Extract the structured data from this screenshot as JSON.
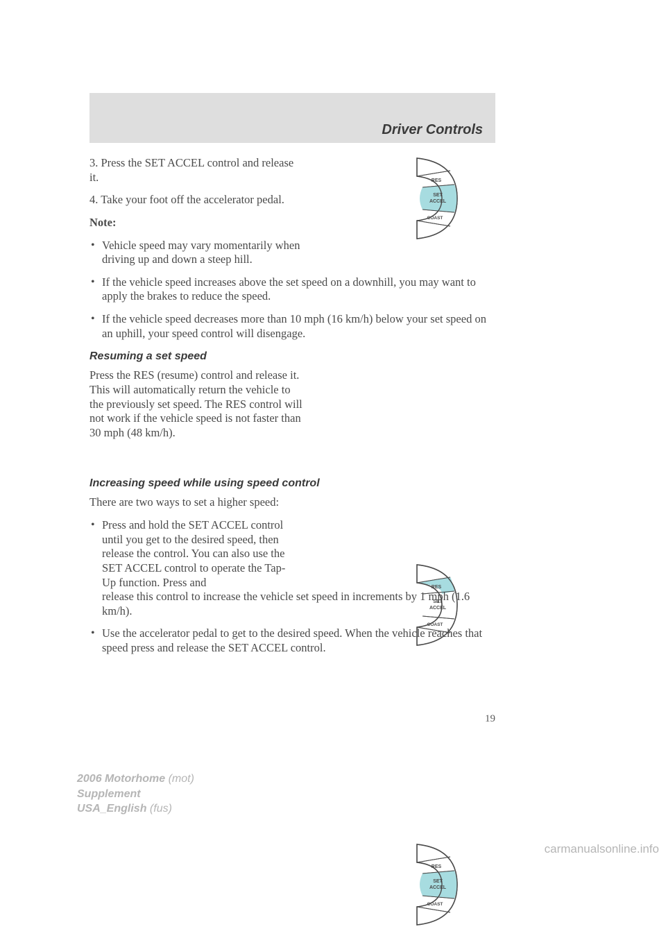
{
  "header": {
    "title": "Driver Controls"
  },
  "body": {
    "p1": "3. Press the SET ACCEL control and release it.",
    "p2": "4. Take your foot off the accelerator pedal.",
    "note_label": "Note:",
    "note_bullets": [
      "Vehicle speed may vary momentarily when driving up and down a steep hill.",
      "If the vehicle speed increases above the set speed on a downhill, you may want to apply the brakes to reduce the speed.",
      "If the vehicle speed decreases more than 10 mph (16 km/h) below your set speed on an uphill, your speed control will disengage."
    ],
    "sub1": "Resuming a set speed",
    "p3": "Press the RES (resume) control and release it. This will automatically return the vehicle to the previously set speed. The RES control will not work if the vehicle speed is not faster than 30 mph (48 km/h).",
    "sub2": "Increasing speed while using speed control",
    "p4": "There are two ways to set a higher speed:",
    "increase_bullets": [
      "Press and hold the SET ACCEL control until you get to the desired speed, then release the control. You can also use the SET ACCEL control to operate the Tap-Up function. Press and release this control to increase the vehicle set speed in increments by 1 mph (1.6 km/h).",
      "Use the accelerator pedal to get to the desired speed. When the vehicle reaches that speed press and release the SET ACCEL control."
    ]
  },
  "page_number": "19",
  "footer": {
    "line1a": "2006 Motorhome",
    "line1b": " (mot)",
    "line2": "Supplement",
    "line3a": "USA_English",
    "line3b": " (fus)"
  },
  "watermark": "carmanualsonline.info",
  "cruise_control": {
    "buttons": {
      "res": "RES",
      "set1": "SET",
      "set2": "ACCEL",
      "coast": "COAST"
    },
    "colors": {
      "outline": "#4a4a4a",
      "fill_off": "#ffffff",
      "highlight": "#a7dce0",
      "band_bg": "#dedede"
    },
    "fig_highlight": {
      "fig1": "set",
      "fig2": "res",
      "fig3": "set"
    }
  }
}
